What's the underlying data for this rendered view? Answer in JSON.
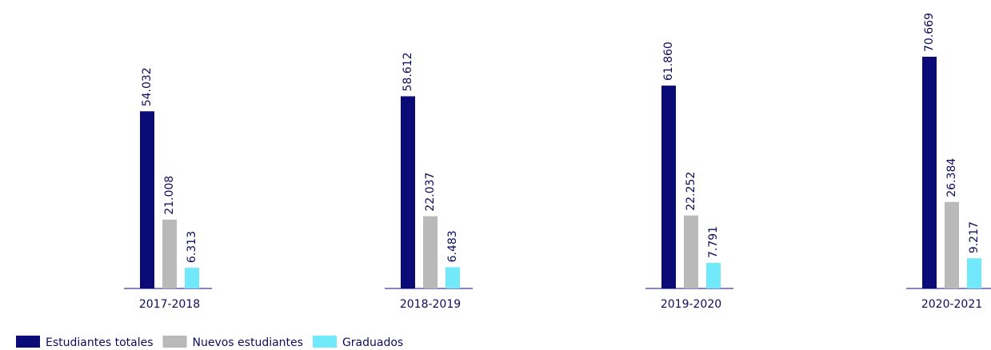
{
  "chart_data": {
    "type": "bar",
    "categories": [
      "2017-2018",
      "2018-2019",
      "2019-2020",
      "2020-2021"
    ],
    "series": [
      {
        "name": "Estudiantes totales",
        "color": "#0b0b78",
        "values": [
          54032,
          58612,
          61860,
          70669
        ],
        "value_labels": [
          "54.032",
          "58.612",
          "61.860",
          "70.669"
        ]
      },
      {
        "name": "Nuevos estudiantes",
        "color": "#b9b9b9",
        "values": [
          21008,
          22037,
          22252,
          26384
        ],
        "value_labels": [
          "21.008",
          "22.037",
          "22.252",
          "26.384"
        ]
      },
      {
        "name": "Graduados",
        "color": "#72e9fb",
        "values": [
          6313,
          6483,
          7791,
          9217
        ],
        "value_labels": [
          "6.313",
          "6.483",
          "7.791",
          "9.217"
        ]
      }
    ],
    "legend": "bottom-left"
  }
}
